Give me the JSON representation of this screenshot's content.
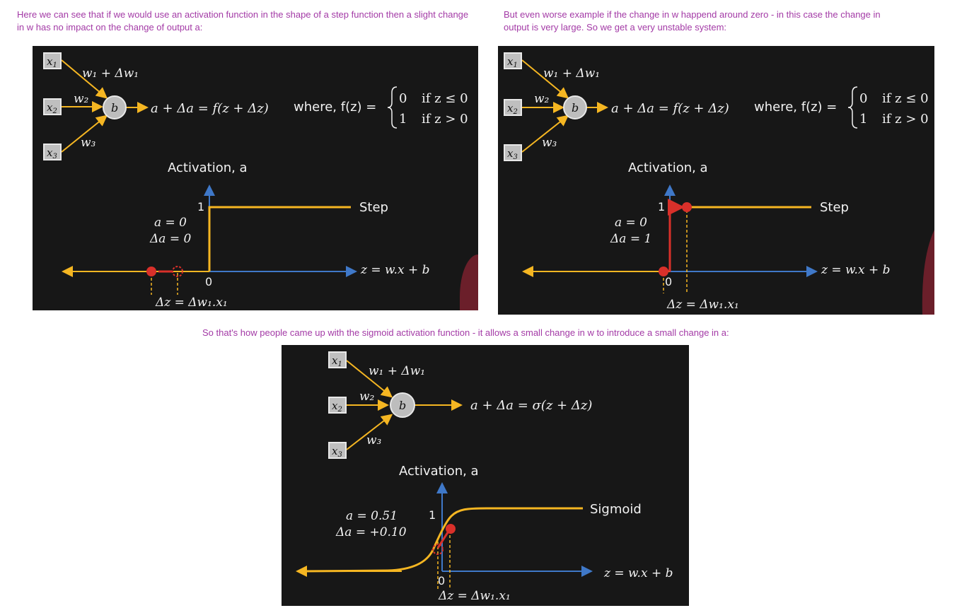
{
  "notes": {
    "left": "Here we can see that if we would use an activation function in the shape of a step function then a slight change in w has no impact on the change of output a:",
    "right": "But even worse example if the change in w happend around zero - in this case the change in output is very large. So we get a very unstable system:",
    "bottom": "So that's how people came up with the sigmoid activation function - it allows a small change in w to introduce a small change in a:"
  },
  "colors": {
    "note": "#a33aa6",
    "panel_bg": "#171717",
    "neuron_line": "#f5b622",
    "axis": "#3f78c8",
    "curve": "#f5b622",
    "point": "#d9302a",
    "red_line": "#c0392b",
    "maroon_edge": "#6b1f2a"
  },
  "panels": [
    {
      "name": "step-small-change",
      "inputs": [
        "x",
        "x",
        "x"
      ],
      "input_subs": [
        "1",
        "2",
        "3"
      ],
      "weights": {
        "w1": "w₁ + Δw₁",
        "w2": "w₂",
        "w3": "w₃"
      },
      "bias": "b",
      "output_eq": "a + Δa = f(z + Δz)",
      "where_label": "where, f(z) =",
      "cases": [
        {
          "value": "0",
          "cond": "if z ≤ 0"
        },
        {
          "value": "1",
          "cond": "if z > 0"
        }
      ],
      "title": "Activation, a",
      "curve_label": "Step",
      "a_text": "a = 0",
      "da_text": "Δa = 0",
      "y_tick": "1",
      "x_tick": "0",
      "axis_label": "z = w.x + b",
      "dz_label": "Δz = Δw₁.x₁"
    },
    {
      "name": "step-around-zero",
      "inputs": [
        "x",
        "x",
        "x"
      ],
      "input_subs": [
        "1",
        "2",
        "3"
      ],
      "weights": {
        "w1": "w₁ + Δw₁",
        "w2": "w₂",
        "w3": "w₃"
      },
      "bias": "b",
      "output_eq": "a + Δa = f(z + Δz)",
      "where_label": "where, f(z) =",
      "cases": [
        {
          "value": "0",
          "cond": "if z ≤ 0"
        },
        {
          "value": "1",
          "cond": "if z > 0"
        }
      ],
      "title": "Activation, a",
      "curve_label": "Step",
      "a_text": "a = 0",
      "da_text": "Δa = 1",
      "y_tick": "1",
      "x_tick": "0",
      "axis_label": "z = w.x + b",
      "dz_label": "Δz = Δw₁.x₁"
    },
    {
      "name": "sigmoid",
      "inputs": [
        "x",
        "x",
        "x"
      ],
      "input_subs": [
        "1",
        "2",
        "3"
      ],
      "weights": {
        "w1": "w₁ + Δw₁",
        "w2": "w₂",
        "w3": "w₃"
      },
      "bias": "b",
      "output_eq": "a + Δa = σ(z + Δz)",
      "title": "Activation, a",
      "curve_label": "Sigmoid",
      "a_text": "a = 0.51",
      "da_text": "Δa = +0.10",
      "y_tick": "1",
      "x_tick": "0",
      "axis_label": "z = w.x + b",
      "dz_label": "Δz = Δw₁.x₁"
    }
  ]
}
